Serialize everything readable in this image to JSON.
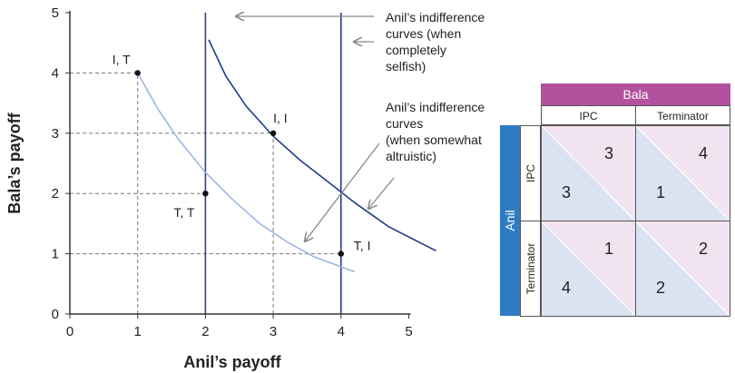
{
  "chart_data": {
    "type": "line",
    "xlabel": "Anil’s payoff",
    "ylabel": "Bala’s payoff",
    "xlim": [
      0,
      5
    ],
    "ylim": [
      0,
      5
    ],
    "x_ticks": [
      "0",
      "1",
      "2",
      "3",
      "4",
      "5"
    ],
    "y_ticks": [
      "0",
      "1",
      "2",
      "3",
      "4",
      "5"
    ],
    "points": [
      {
        "label": "I, T",
        "x": 1,
        "y": 4
      },
      {
        "label": "I, I",
        "x": 3,
        "y": 3
      },
      {
        "label": "T, T",
        "x": 2,
        "y": 2
      },
      {
        "label": "T, I",
        "x": 4,
        "y": 1
      }
    ],
    "selfish_curves": [
      2,
      4
    ],
    "altruistic_curves": [
      {
        "color": "#9bb7e0",
        "x": [
          1.0,
          1.3,
          1.6,
          2.0,
          2.4,
          2.8,
          3.2,
          3.6,
          4.2
        ],
        "y": [
          4.0,
          3.4,
          2.9,
          2.35,
          1.9,
          1.5,
          1.2,
          0.95,
          0.7
        ]
      },
      {
        "color": "#1f3b8a",
        "x": [
          2.05,
          2.3,
          2.6,
          3.0,
          3.4,
          3.8,
          4.2,
          4.7,
          5.4
        ],
        "y": [
          4.55,
          3.95,
          3.45,
          2.95,
          2.55,
          2.2,
          1.85,
          1.45,
          1.05
        ]
      }
    ],
    "annotations": [
      {
        "lines": [
          "Anil’s indifference",
          "curves (when",
          "completely",
          "selfish)"
        ]
      },
      {
        "lines": [
          "Anil’s indifference",
          "curves",
          "(when somewhat",
          "altruistic)"
        ]
      }
    ]
  },
  "payoff_matrix": {
    "column_player": "Bala",
    "row_player": "Anil",
    "columns": [
      "IPC",
      "Terminator"
    ],
    "rows": [
      "IPC",
      "Terminator"
    ],
    "cells": [
      [
        {
          "anil": "3",
          "bala": "3"
        },
        {
          "anil": "1",
          "bala": "4"
        }
      ],
      [
        {
          "anil": "4",
          "bala": "1"
        },
        {
          "anil": "2",
          "bala": "2"
        }
      ]
    ]
  },
  "colors": {
    "bala": "#b4519f",
    "anil": "#2f7cc3",
    "selfish_line": "#2b3f8c",
    "cell_lower": "#dbe3f2",
    "cell_upper": "#f1e3f0"
  }
}
